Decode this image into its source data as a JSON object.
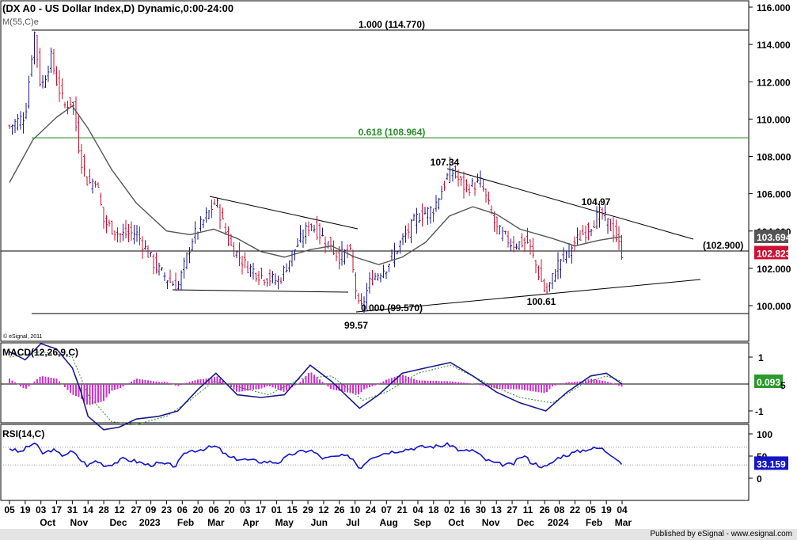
{
  "chart_data": {
    "type": "line",
    "title": "(DX A0 - US Dollar Index,D) Dynamic,0:00-24:00",
    "ma_label": "M(55,C)e",
    "copyright": "© eSignal, 2011",
    "price_axis": {
      "ylim": [
        98.8,
        116.4
      ],
      "ticks": [
        "116.000",
        "114.000",
        "112.000",
        "110.000",
        "108.000",
        "106.000",
        "104.000",
        "102.000",
        "100.000"
      ],
      "ma_value_label": "103.694",
      "last_value_label": "102.823"
    },
    "annotations": {
      "fib_100": "1.000 (114.770)",
      "fib_618": "0.618 (108.964)",
      "fib_000": "0.000 (99.570)",
      "hline_label": "(102.900)",
      "low_1": "99.57",
      "high_1": "107.34",
      "high_2": "104.97",
      "low_2": "100.61"
    },
    "price_series": [
      {
        "x": "2022-09-05",
        "y": 109.6
      },
      {
        "x": "2022-09-19",
        "y": 110.2
      },
      {
        "x": "2022-09-27",
        "y": 114.7
      },
      {
        "x": "2022-10-03",
        "y": 111.6
      },
      {
        "x": "2022-10-12",
        "y": 113.3
      },
      {
        "x": "2022-10-17",
        "y": 112.0
      },
      {
        "x": "2022-10-24",
        "y": 110.7
      },
      {
        "x": "2022-10-31",
        "y": 111.0
      },
      {
        "x": "2022-11-07",
        "y": 108.0
      },
      {
        "x": "2022-11-14",
        "y": 106.5
      },
      {
        "x": "2022-11-21",
        "y": 106.8
      },
      {
        "x": "2022-11-28",
        "y": 104.5
      },
      {
        "x": "2022-12-12",
        "y": 103.8
      },
      {
        "x": "2022-12-27",
        "y": 103.9
      },
      {
        "x": "2023-01-13",
        "y": 102.1
      },
      {
        "x": "2023-01-26",
        "y": 101.3
      },
      {
        "x": "2023-02-02",
        "y": 101.0
      },
      {
        "x": "2023-02-15",
        "y": 103.6
      },
      {
        "x": "2023-03-08",
        "y": 105.6
      },
      {
        "x": "2023-03-20",
        "y": 103.3
      },
      {
        "x": "2023-04-03",
        "y": 102.2
      },
      {
        "x": "2023-04-17",
        "y": 101.6
      },
      {
        "x": "2023-05-03",
        "y": 101.3
      },
      {
        "x": "2023-05-15",
        "y": 102.8
      },
      {
        "x": "2023-05-31",
        "y": 104.4
      },
      {
        "x": "2023-06-12",
        "y": 103.6
      },
      {
        "x": "2023-06-26",
        "y": 102.6
      },
      {
        "x": "2023-07-05",
        "y": 103.0
      },
      {
        "x": "2023-07-14",
        "y": 99.6
      },
      {
        "x": "2023-07-24",
        "y": 101.4
      },
      {
        "x": "2023-08-07",
        "y": 102.1
      },
      {
        "x": "2023-08-21",
        "y": 103.5
      },
      {
        "x": "2023-09-04",
        "y": 104.8
      },
      {
        "x": "2023-09-18",
        "y": 105.2
      },
      {
        "x": "2023-10-03",
        "y": 107.3
      },
      {
        "x": "2023-10-16",
        "y": 106.3
      },
      {
        "x": "2023-10-30",
        "y": 106.6
      },
      {
        "x": "2023-11-13",
        "y": 104.1
      },
      {
        "x": "2023-11-27",
        "y": 103.3
      },
      {
        "x": "2023-12-11",
        "y": 103.4
      },
      {
        "x": "2023-12-27",
        "y": 100.6
      },
      {
        "x": "2024-01-08",
        "y": 102.4
      },
      {
        "x": "2024-01-22",
        "y": 103.4
      },
      {
        "x": "2024-02-05",
        "y": 104.3
      },
      {
        "x": "2024-02-14",
        "y": 105.0
      },
      {
        "x": "2024-02-26",
        "y": 103.9
      },
      {
        "x": "2024-03-04",
        "y": 102.8
      }
    ],
    "ma_series": [
      {
        "x": "2022-09-05",
        "y": 106.6
      },
      {
        "x": "2022-09-26",
        "y": 108.9
      },
      {
        "x": "2022-10-17",
        "y": 110.1
      },
      {
        "x": "2022-10-31",
        "y": 110.7
      },
      {
        "x": "2022-11-14",
        "y": 109.5
      },
      {
        "x": "2022-12-05",
        "y": 107.3
      },
      {
        "x": "2022-12-27",
        "y": 105.5
      },
      {
        "x": "2023-01-23",
        "y": 104.0
      },
      {
        "x": "2023-02-13",
        "y": 103.8
      },
      {
        "x": "2023-03-06",
        "y": 104.1
      },
      {
        "x": "2023-03-27",
        "y": 103.6
      },
      {
        "x": "2023-04-17",
        "y": 102.9
      },
      {
        "x": "2023-05-08",
        "y": 102.6
      },
      {
        "x": "2023-05-31",
        "y": 103.0
      },
      {
        "x": "2023-06-19",
        "y": 103.2
      },
      {
        "x": "2023-07-10",
        "y": 102.6
      },
      {
        "x": "2023-07-31",
        "y": 102.2
      },
      {
        "x": "2023-08-21",
        "y": 102.6
      },
      {
        "x": "2023-09-11",
        "y": 103.4
      },
      {
        "x": "2023-10-02",
        "y": 104.8
      },
      {
        "x": "2023-10-23",
        "y": 105.3
      },
      {
        "x": "2023-11-13",
        "y": 104.9
      },
      {
        "x": "2023-12-04",
        "y": 104.1
      },
      {
        "x": "2024-01-02",
        "y": 103.6
      },
      {
        "x": "2024-01-22",
        "y": 103.2
      },
      {
        "x": "2024-02-12",
        "y": 103.5
      },
      {
        "x": "2024-03-04",
        "y": 103.7
      }
    ],
    "macd": {
      "label": "MACD(12,26,9,C)",
      "ticks": [
        "1",
        "-1"
      ],
      "value_label": "0.093",
      "partial_label": "5",
      "ylim": [
        -2.2,
        2.2
      ],
      "macd_line": [
        {
          "x": "2022-09-05",
          "y": 1.2
        },
        {
          "x": "2022-09-19",
          "y": 0.9
        },
        {
          "x": "2022-10-03",
          "y": 1.5
        },
        {
          "x": "2022-10-17",
          "y": 1.3
        },
        {
          "x": "2022-10-31",
          "y": 0.6
        },
        {
          "x": "2022-11-07",
          "y": -0.2
        },
        {
          "x": "2022-11-14",
          "y": -1.2
        },
        {
          "x": "2022-11-28",
          "y": -1.7
        },
        {
          "x": "2022-12-12",
          "y": -1.6
        },
        {
          "x": "2022-12-27",
          "y": -1.3
        },
        {
          "x": "2023-01-16",
          "y": -1.2
        },
        {
          "x": "2023-02-02",
          "y": -1.0
        },
        {
          "x": "2023-02-20",
          "y": -0.2
        },
        {
          "x": "2023-03-08",
          "y": 0.4
        },
        {
          "x": "2023-03-27",
          "y": -0.4
        },
        {
          "x": "2023-04-17",
          "y": -0.5
        },
        {
          "x": "2023-05-08",
          "y": -0.4
        },
        {
          "x": "2023-05-31",
          "y": 0.7
        },
        {
          "x": "2023-06-19",
          "y": 0.1
        },
        {
          "x": "2023-07-14",
          "y": -0.9
        },
        {
          "x": "2023-07-31",
          "y": -0.4
        },
        {
          "x": "2023-08-21",
          "y": 0.4
        },
        {
          "x": "2023-09-11",
          "y": 0.6
        },
        {
          "x": "2023-10-03",
          "y": 0.8
        },
        {
          "x": "2023-10-23",
          "y": 0.3
        },
        {
          "x": "2023-11-13",
          "y": -0.3
        },
        {
          "x": "2023-12-04",
          "y": -0.7
        },
        {
          "x": "2023-12-27",
          "y": -1.0
        },
        {
          "x": "2024-01-15",
          "y": -0.3
        },
        {
          "x": "2024-02-05",
          "y": 0.3
        },
        {
          "x": "2024-02-19",
          "y": 0.4
        },
        {
          "x": "2024-03-04",
          "y": 0.0
        }
      ],
      "signal_line": [
        {
          "x": "2022-09-05",
          "y": 1.0
        },
        {
          "x": "2022-10-03",
          "y": 1.2
        },
        {
          "x": "2022-10-31",
          "y": 1.0
        },
        {
          "x": "2022-11-14",
          "y": -0.4
        },
        {
          "x": "2022-12-05",
          "y": -1.4
        },
        {
          "x": "2022-12-27",
          "y": -1.5
        },
        {
          "x": "2023-01-23",
          "y": -1.2
        },
        {
          "x": "2023-02-13",
          "y": -0.6
        },
        {
          "x": "2023-03-06",
          "y": 0.1
        },
        {
          "x": "2023-03-27",
          "y": -0.1
        },
        {
          "x": "2023-04-24",
          "y": -0.4
        },
        {
          "x": "2023-05-22",
          "y": 0.2
        },
        {
          "x": "2023-06-19",
          "y": 0.3
        },
        {
          "x": "2023-07-17",
          "y": -0.6
        },
        {
          "x": "2023-08-07",
          "y": -0.3
        },
        {
          "x": "2023-09-04",
          "y": 0.4
        },
        {
          "x": "2023-10-03",
          "y": 0.7
        },
        {
          "x": "2023-11-06",
          "y": 0.0
        },
        {
          "x": "2023-12-04",
          "y": -0.5
        },
        {
          "x": "2024-01-02",
          "y": -0.7
        },
        {
          "x": "2024-01-29",
          "y": 0.0
        },
        {
          "x": "2024-02-19",
          "y": 0.3
        },
        {
          "x": "2024-03-04",
          "y": 0.1
        }
      ]
    },
    "rsi": {
      "label": "RSI(14,C)",
      "ticks": [
        "100",
        "50",
        "0"
      ],
      "value_label": "33.159",
      "ylim": [
        -8,
        110
      ],
      "series": [
        {
          "x": "2022-09-05",
          "y": 68
        },
        {
          "x": "2022-09-14",
          "y": 58
        },
        {
          "x": "2022-09-27",
          "y": 80
        },
        {
          "x": "2022-10-05",
          "y": 55
        },
        {
          "x": "2022-10-13",
          "y": 65
        },
        {
          "x": "2022-10-21",
          "y": 52
        },
        {
          "x": "2022-10-31",
          "y": 60
        },
        {
          "x": "2022-11-08",
          "y": 40
        },
        {
          "x": "2022-11-14",
          "y": 28
        },
        {
          "x": "2022-11-21",
          "y": 40
        },
        {
          "x": "2022-11-30",
          "y": 28
        },
        {
          "x": "2022-12-09",
          "y": 36
        },
        {
          "x": "2022-12-16",
          "y": 44
        },
        {
          "x": "2022-12-27",
          "y": 38
        },
        {
          "x": "2023-01-06",
          "y": 30
        },
        {
          "x": "2023-01-16",
          "y": 33
        },
        {
          "x": "2023-01-31",
          "y": 28
        },
        {
          "x": "2023-02-10",
          "y": 60
        },
        {
          "x": "2023-02-24",
          "y": 66
        },
        {
          "x": "2023-03-08",
          "y": 72
        },
        {
          "x": "2023-03-20",
          "y": 46
        },
        {
          "x": "2023-04-03",
          "y": 42
        },
        {
          "x": "2023-04-14",
          "y": 38
        },
        {
          "x": "2023-05-03",
          "y": 36
        },
        {
          "x": "2023-05-15",
          "y": 55
        },
        {
          "x": "2023-05-31",
          "y": 64
        },
        {
          "x": "2023-06-12",
          "y": 44
        },
        {
          "x": "2023-06-26",
          "y": 50
        },
        {
          "x": "2023-07-07",
          "y": 48
        },
        {
          "x": "2023-07-14",
          "y": 22
        },
        {
          "x": "2023-07-24",
          "y": 48
        },
        {
          "x": "2023-08-07",
          "y": 58
        },
        {
          "x": "2023-08-21",
          "y": 64
        },
        {
          "x": "2023-09-05",
          "y": 70
        },
        {
          "x": "2023-09-20",
          "y": 72
        },
        {
          "x": "2023-10-03",
          "y": 76
        },
        {
          "x": "2023-10-13",
          "y": 60
        },
        {
          "x": "2023-10-23",
          "y": 64
        },
        {
          "x": "2023-11-03",
          "y": 42
        },
        {
          "x": "2023-11-14",
          "y": 32
        },
        {
          "x": "2023-11-27",
          "y": 30
        },
        {
          "x": "2023-12-07",
          "y": 52
        },
        {
          "x": "2023-12-14",
          "y": 36
        },
        {
          "x": "2023-12-27",
          "y": 24
        },
        {
          "x": "2024-01-08",
          "y": 48
        },
        {
          "x": "2024-01-19",
          "y": 56
        },
        {
          "x": "2024-02-02",
          "y": 66
        },
        {
          "x": "2024-02-14",
          "y": 68
        },
        {
          "x": "2024-02-26",
          "y": 50
        },
        {
          "x": "2024-03-04",
          "y": 33
        }
      ]
    },
    "x_axis": {
      "day_labels": [
        "05",
        "19",
        "03",
        "17",
        "31",
        "14",
        "28",
        "12",
        "27",
        "09",
        "23",
        "06",
        "20",
        "06",
        "20",
        "03",
        "17",
        "01",
        "15",
        "29",
        "12",
        "26",
        "10",
        "24",
        "07",
        "21",
        "04",
        "18",
        "02",
        "16",
        "30",
        "13",
        "27",
        "11",
        "26",
        "08",
        "22",
        "05",
        "19",
        "04"
      ],
      "day_dates": [
        "2022-09-05",
        "2022-09-19",
        "2022-10-03",
        "2022-10-17",
        "2022-10-31",
        "2022-11-14",
        "2022-11-28",
        "2022-12-12",
        "2022-12-27",
        "2023-01-09",
        "2023-01-23",
        "2023-02-06",
        "2023-02-20",
        "2023-03-06",
        "2023-03-20",
        "2023-04-03",
        "2023-04-17",
        "2023-05-01",
        "2023-05-15",
        "2023-05-29",
        "2023-06-12",
        "2023-06-26",
        "2023-07-10",
        "2023-07-24",
        "2023-08-07",
        "2023-08-21",
        "2023-09-04",
        "2023-09-18",
        "2023-10-02",
        "2023-10-16",
        "2023-10-30",
        "2023-11-13",
        "2023-11-27",
        "2023-12-11",
        "2023-12-26",
        "2024-01-08",
        "2024-01-22",
        "2024-02-05",
        "2024-02-19",
        "2024-03-04"
      ],
      "month_labels": [
        "Oct",
        "Nov",
        "Dec",
        "2023",
        "Feb",
        "Mar",
        "Apr",
        "May",
        "Jun",
        "Jul",
        "Aug",
        "Sep",
        "Oct",
        "Nov",
        "Dec",
        "2024",
        "Feb",
        "Mar"
      ],
      "month_dates": [
        "2022-10-09",
        "2022-11-06",
        "2022-12-11",
        "2023-01-08",
        "2023-02-09",
        "2023-03-08",
        "2023-04-08",
        "2023-05-08",
        "2023-06-08",
        "2023-07-08",
        "2023-08-09",
        "2023-09-08",
        "2023-10-08",
        "2023-11-08",
        "2023-12-09",
        "2024-01-07",
        "2024-02-08",
        "2024-03-05"
      ]
    },
    "colors": {
      "up_bar": "#1a1a8c",
      "down_bar": "#cc1133",
      "ma_line": "#555555",
      "fib_618": "#2b8a2b",
      "macd_line": "#1a1a8c",
      "histogram": "#cc33cc",
      "rsi_line": "#1414c8",
      "ma_label_bg": "#555555",
      "last_label_bg": "#cc1133",
      "macd_label_bg": "#2b9a2b",
      "rsi_label_bg": "#1414c8"
    }
  },
  "footer": {
    "publisher": "Published by eSignal - www.esignal.com"
  }
}
